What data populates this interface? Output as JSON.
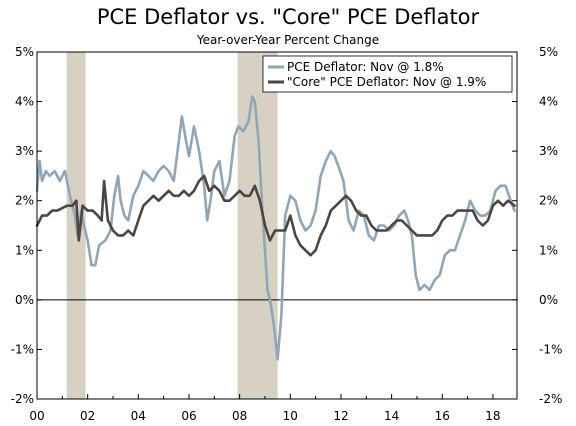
{
  "chart_data": {
    "type": "line",
    "title": "PCE Deflator vs. \"Core\" PCE Deflator",
    "subtitle": "Year-over-Year Percent Change",
    "xlabel": "",
    "ylabel": "",
    "xlim": [
      2000.0,
      2018.95
    ],
    "ylim": [
      -2,
      5
    ],
    "grid": false,
    "legend_position": "top-right",
    "x_tick_values": [
      2000,
      2002,
      2004,
      2006,
      2008,
      2010,
      2012,
      2014,
      2016,
      2018
    ],
    "x_tick_labels": [
      "00",
      "02",
      "04",
      "06",
      "08",
      "10",
      "12",
      "14",
      "16",
      "18"
    ],
    "y_tick_values": [
      -2,
      -1,
      0,
      1,
      2,
      3,
      4,
      5
    ],
    "y_tick_labels_left": [
      "-2%",
      "-1%",
      "0%",
      "1%",
      "2%",
      "3%",
      "4%",
      "5%"
    ],
    "y_tick_labels_right": [
      "-2%",
      "-1%",
      "0%",
      "1%",
      "2%",
      "3%",
      "4%",
      "5%"
    ],
    "recessions": [
      {
        "start": 2001.17,
        "end": 2001.92
      },
      {
        "start": 2007.92,
        "end": 2009.5
      }
    ],
    "series": [
      {
        "name": "PCE Deflator: Nov @ 1.8%",
        "color": "#8fa6b8",
        "x": [
          2000.0,
          2000.1,
          2000.2,
          2000.35,
          2000.5,
          2000.7,
          2000.9,
          2001.1,
          2001.3,
          2001.5,
          2001.6,
          2001.75,
          2001.85,
          2002.0,
          2002.15,
          2002.3,
          2002.45,
          2002.7,
          2002.9,
          2003.05,
          2003.2,
          2003.3,
          2003.45,
          2003.6,
          2003.8,
          2004.0,
          2004.2,
          2004.4,
          2004.6,
          2004.8,
          2005.0,
          2005.2,
          2005.4,
          2005.6,
          2005.72,
          2005.85,
          2006.0,
          2006.2,
          2006.4,
          2006.6,
          2006.72,
          2006.85,
          2007.0,
          2007.2,
          2007.4,
          2007.6,
          2007.8,
          2007.95,
          2008.15,
          2008.35,
          2008.5,
          2008.6,
          2008.75,
          2008.9,
          2009.0,
          2009.1,
          2009.2,
          2009.35,
          2009.5,
          2009.65,
          2009.8,
          2010.0,
          2010.2,
          2010.4,
          2010.6,
          2010.8,
          2011.0,
          2011.2,
          2011.4,
          2011.6,
          2011.75,
          2011.9,
          2012.1,
          2012.3,
          2012.5,
          2012.7,
          2012.9,
          2013.1,
          2013.3,
          2013.5,
          2013.7,
          2013.9,
          2014.1,
          2014.3,
          2014.5,
          2014.65,
          2014.8,
          2014.95,
          2015.1,
          2015.3,
          2015.5,
          2015.7,
          2015.9,
          2016.1,
          2016.3,
          2016.5,
          2016.7,
          2016.9,
          2017.1,
          2017.3,
          2017.5,
          2017.7,
          2017.9,
          2018.1,
          2018.3,
          2018.5,
          2018.7,
          2018.85
        ],
        "values": [
          2.2,
          2.8,
          2.4,
          2.6,
          2.5,
          2.6,
          2.4,
          2.6,
          2.1,
          1.7,
          1.3,
          1.8,
          1.5,
          1.2,
          0.7,
          0.7,
          1.1,
          1.2,
          1.4,
          2.1,
          2.5,
          2.0,
          1.7,
          1.6,
          2.1,
          2.3,
          2.6,
          2.5,
          2.4,
          2.6,
          2.7,
          2.6,
          2.4,
          3.2,
          3.7,
          3.3,
          2.9,
          3.5,
          3.0,
          2.3,
          1.6,
          2.0,
          2.6,
          2.8,
          2.1,
          2.4,
          3.3,
          3.5,
          3.4,
          3.6,
          4.1,
          4.0,
          3.2,
          1.8,
          1.0,
          0.2,
          0.0,
          -0.5,
          -1.2,
          -0.3,
          1.7,
          2.1,
          2.0,
          1.6,
          1.4,
          1.5,
          1.8,
          2.5,
          2.8,
          3.0,
          2.9,
          2.7,
          2.4,
          1.6,
          1.4,
          1.8,
          1.7,
          1.3,
          1.2,
          1.5,
          1.5,
          1.4,
          1.5,
          1.7,
          1.8,
          1.6,
          1.3,
          0.5,
          0.2,
          0.3,
          0.2,
          0.4,
          0.5,
          0.9,
          1.0,
          1.0,
          1.3,
          1.6,
          2.0,
          1.8,
          1.7,
          1.7,
          1.8,
          2.2,
          2.3,
          2.3,
          2.0,
          1.8
        ]
      },
      {
        "name": "\"Core\" PCE Deflator: Nov @ 1.9%",
        "color": "#4d4540",
        "x": [
          2000.0,
          2000.2,
          2000.4,
          2000.6,
          2000.8,
          2001.0,
          2001.2,
          2001.4,
          2001.55,
          2001.65,
          2001.8,
          2002.0,
          2002.2,
          2002.4,
          2002.55,
          2002.65,
          2002.8,
          2003.0,
          2003.2,
          2003.4,
          2003.6,
          2003.8,
          2004.0,
          2004.2,
          2004.4,
          2004.6,
          2004.8,
          2005.0,
          2005.2,
          2005.4,
          2005.6,
          2005.8,
          2006.0,
          2006.2,
          2006.4,
          2006.6,
          2006.8,
          2007.0,
          2007.2,
          2007.4,
          2007.6,
          2007.8,
          2008.0,
          2008.2,
          2008.4,
          2008.6,
          2008.8,
          2009.0,
          2009.2,
          2009.4,
          2009.6,
          2009.8,
          2010.0,
          2010.2,
          2010.4,
          2010.6,
          2010.8,
          2011.0,
          2011.2,
          2011.4,
          2011.6,
          2011.8,
          2012.0,
          2012.2,
          2012.4,
          2012.6,
          2012.8,
          2013.0,
          2013.2,
          2013.4,
          2013.6,
          2013.8,
          2014.0,
          2014.2,
          2014.4,
          2014.6,
          2014.8,
          2015.0,
          2015.2,
          2015.4,
          2015.6,
          2015.8,
          2016.0,
          2016.2,
          2016.4,
          2016.6,
          2016.8,
          2017.0,
          2017.2,
          2017.4,
          2017.6,
          2017.8,
          2018.0,
          2018.2,
          2018.4,
          2018.6,
          2018.85
        ],
        "values": [
          1.5,
          1.7,
          1.7,
          1.8,
          1.8,
          1.85,
          1.9,
          1.9,
          2.0,
          1.2,
          1.9,
          1.8,
          1.8,
          1.7,
          1.6,
          2.4,
          1.6,
          1.4,
          1.3,
          1.3,
          1.4,
          1.3,
          1.6,
          1.9,
          2.0,
          2.1,
          2.0,
          2.1,
          2.2,
          2.1,
          2.1,
          2.2,
          2.1,
          2.2,
          2.4,
          2.5,
          2.2,
          2.3,
          2.2,
          2.0,
          2.0,
          2.1,
          2.2,
          2.1,
          2.1,
          2.3,
          2.0,
          1.5,
          1.2,
          1.4,
          1.4,
          1.4,
          1.7,
          1.3,
          1.1,
          1.0,
          0.9,
          1.0,
          1.3,
          1.5,
          1.8,
          1.9,
          2.0,
          2.1,
          2.0,
          1.8,
          1.7,
          1.7,
          1.5,
          1.4,
          1.4,
          1.4,
          1.5,
          1.6,
          1.6,
          1.5,
          1.4,
          1.3,
          1.3,
          1.3,
          1.3,
          1.4,
          1.6,
          1.7,
          1.7,
          1.8,
          1.8,
          1.8,
          1.8,
          1.6,
          1.5,
          1.6,
          1.9,
          2.0,
          1.9,
          2.0,
          1.9
        ]
      }
    ]
  }
}
